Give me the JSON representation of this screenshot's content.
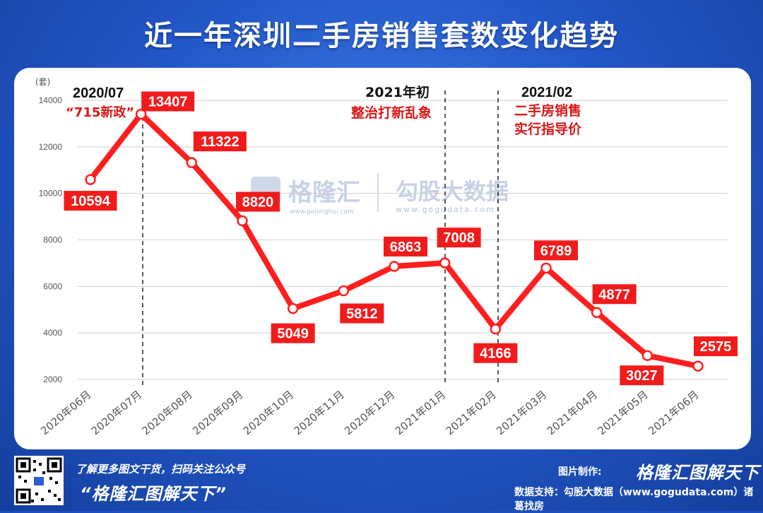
{
  "title": "近一年深圳二手房销售套数变化趋势",
  "colors": {
    "background": "#2358c9",
    "line": "#ff1f1f",
    "label_bg": "#f21b1b",
    "annotation": "#d91818",
    "axis_text": "#555555"
  },
  "chart_data": {
    "type": "line",
    "ylabel": "(套)",
    "ylim": [
      2000,
      14000
    ],
    "yticks": [
      "14000",
      "12000",
      "10000",
      "8000",
      "6000",
      "4000",
      "2000"
    ],
    "categories": [
      "2020年06月",
      "2020年07月",
      "2020年08月",
      "2020年09月",
      "2020年10月",
      "2020年11月",
      "2020年12月",
      "2021年01月",
      "2021年02月",
      "2021年03月",
      "2021年04月",
      "2021年05月",
      "2021年06月"
    ],
    "values": [
      10594,
      13407,
      11322,
      8820,
      5049,
      5812,
      6863,
      7008,
      4166,
      6789,
      4877,
      3027,
      2575
    ],
    "grid": "horizontal",
    "annotations": [
      {
        "title": "2020/07",
        "text": "“715新政”",
        "at": "2020年07月"
      },
      {
        "title": "2021年初",
        "text": "整治打新乱象",
        "at": "2021年01月"
      },
      {
        "title": "2021/02",
        "lines": [
          "二手房销售",
          "实行指导价"
        ],
        "at": "2021年02月"
      }
    ]
  },
  "watermark": {
    "brand1": "格隆汇",
    "brand1_url": "www.gelonghui.com",
    "brand2": "勾股大数据",
    "brand2_url": "www.gogudata.com"
  },
  "footer": {
    "promo": "了解更多图文干货，扫码关注公众号",
    "account": "“格隆汇图解天下”",
    "made_by_label": "图片制作:",
    "made_by_brand": "格隆汇图解天下",
    "support": "数据支持：勾股大数据（www.gogudata.com）诸葛找房"
  }
}
